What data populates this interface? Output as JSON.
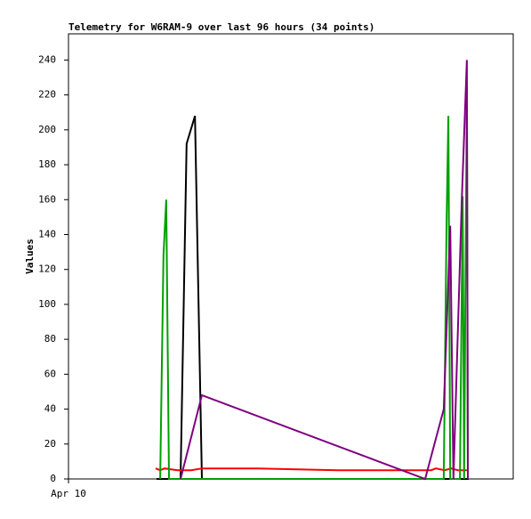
{
  "chart_data": {
    "type": "line",
    "title": "Telemetry for W6RAM-9 over last 96 hours (34 points)",
    "y_label": "Values",
    "xlim": [
      0,
      96
    ],
    "xticks": [
      {
        "value": 0,
        "label": "Apr 10"
      }
    ],
    "ylim": [
      0,
      255
    ],
    "yticks": [
      0,
      20,
      40,
      60,
      80,
      100,
      120,
      140,
      160,
      180,
      200,
      220,
      240
    ],
    "grid": false,
    "series": [
      {
        "color": "#0000c0",
        "x": [
          26.5,
          28.8
        ],
        "values": [
          0,
          0
        ]
      },
      {
        "color": "#000000",
        "x": [
          19.0,
          24.2,
          25.5,
          27.3,
          28.8,
          86.4
        ],
        "values": [
          0,
          0,
          192,
          208,
          0,
          0
        ]
      },
      {
        "color": "#ff0000",
        "x": [
          18.8,
          19.8,
          20.7,
          23.6,
          26.5,
          28.8,
          40.9,
          58.2,
          78.3,
          79.3,
          81.2,
          82.6,
          84.1,
          86.0
        ],
        "values": [
          6,
          5,
          6,
          5,
          5,
          6,
          6,
          5,
          5,
          6,
          5,
          6,
          5,
          5
        ]
      },
      {
        "color": "#00a000",
        "x": [
          19.8,
          20.5,
          21.1,
          21.7,
          81.0,
          81.6,
          82.0,
          82.4,
          84.5,
          85.1,
          85.4,
          86.0,
          86.2
        ],
        "values": [
          0,
          128,
          160,
          0,
          0,
          144,
          208,
          0,
          0,
          162,
          0,
          225,
          0
        ]
      },
      {
        "color": "#800080",
        "x": [
          24.2,
          28.8,
          77.0,
          81.0,
          82.4,
          83.1,
          84.9,
          86.0,
          86.2
        ],
        "values": [
          0,
          48,
          0,
          40,
          145,
          0,
          160,
          240,
          0
        ]
      }
    ]
  }
}
